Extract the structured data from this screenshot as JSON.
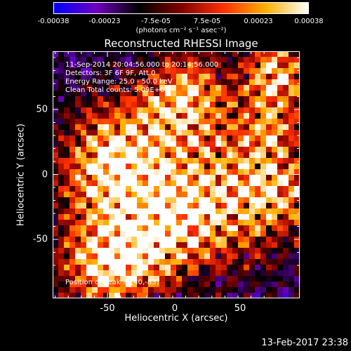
{
  "colorbar": {
    "ticks": [
      "-0.00038",
      "-0.00023",
      "-7.5e-05",
      "7.5e-05",
      "0.00023",
      "0.00038"
    ],
    "units": "(photons cm⁻² s⁻¹ asec⁻²)",
    "colors": [
      "#0000ff",
      "#7000c0",
      "#000000",
      "#800000",
      "#ff3000",
      "#ffb000",
      "#ffffff"
    ]
  },
  "plot": {
    "title": "Reconstructed RHESSI Image",
    "info_lines": [
      "11-Sep-2014 20:04:56.000 to 20:14:56.000",
      "Detectors: 3F 6F 9F, Att 0",
      "Energy Range: 25.0 - 50.0 keV",
      "Clean    Total counts: 5.09E+03"
    ],
    "peak_text": "Position of Peak = [40,-83]",
    "xlabel": "Heliocentric X (arcsec)",
    "ylabel": "Heliocentric Y (arcsec)",
    "xticks": [
      "-50",
      "0",
      "50"
    ],
    "yticks": [
      "50",
      "0",
      "-50"
    ]
  },
  "footer": {
    "timestamp": "13-Feb-2017 23:38"
  }
}
